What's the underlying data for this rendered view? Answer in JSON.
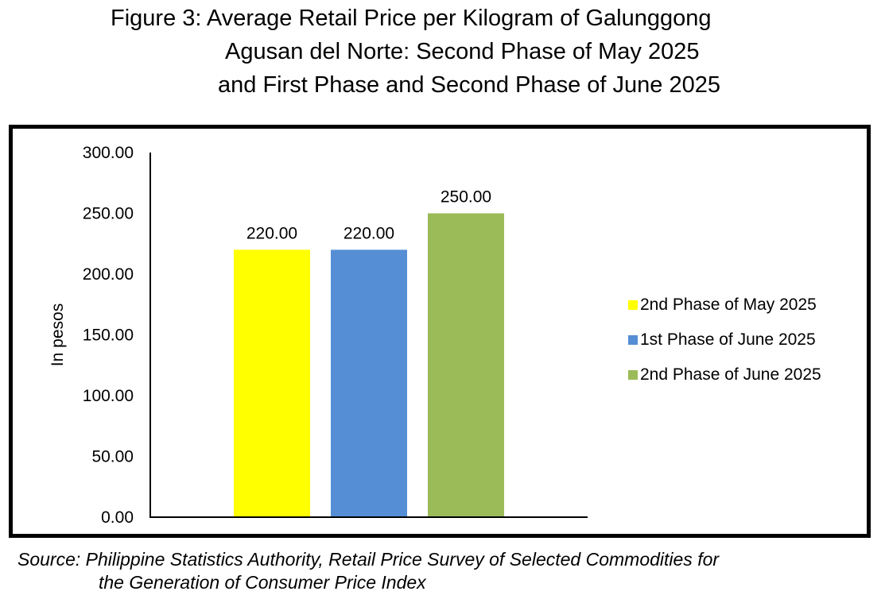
{
  "title": {
    "line1": "Figure 3: Average Retail Price per Kilogram of Galunggong",
    "line2": "Agusan del Norte: Second Phase of May 2025",
    "line3": "and First Phase and Second Phase of June 2025"
  },
  "source": {
    "line1": "Source: Philippine Statistics Authority, Retail Price Survey of Selected Commodities for",
    "line2": "the Generation of Consumer Price Index"
  },
  "chart_data": {
    "type": "bar",
    "title": "Figure 3: Average Retail Price per Kilogram of Galunggong Agusan del Norte: Second Phase of May 2025 and First Phase and Second Phase of June 2025",
    "xlabel": "",
    "ylabel": "In pesos",
    "ylim": [
      0,
      300
    ],
    "yticks": [
      "0.00",
      "50.00",
      "100.00",
      "150.00",
      "200.00",
      "250.00",
      "300.00"
    ],
    "grid": false,
    "legend_position": "right",
    "series": [
      {
        "name": "2nd Phase of May 2025",
        "value": 220,
        "label": "220.00",
        "color": "#ffff00"
      },
      {
        "name": "1st Phase of June 2025",
        "value": 220,
        "label": "220.00",
        "color": "#558ed5"
      },
      {
        "name": "2nd Phase of June 2025",
        "value": 250,
        "label": "250.00",
        "color": "#9bbb59"
      }
    ]
  }
}
